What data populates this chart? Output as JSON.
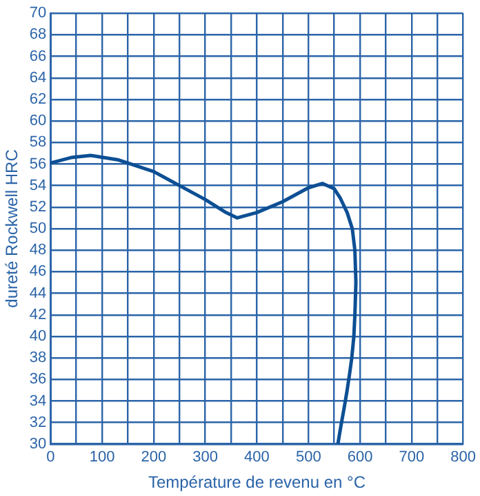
{
  "chart_data": {
    "type": "line",
    "xlabel": "Température de revenu en °C",
    "ylabel": "dureté Rockwell HRC",
    "series": [
      {
        "color": "#0d4f94",
        "x": [
          0,
          40,
          78,
          130,
          200,
          250,
          300,
          340,
          362,
          400,
          450,
          500,
          527,
          550,
          561,
          575,
          585,
          590,
          592,
          590,
          588,
          584,
          580,
          575,
          569,
          563,
          557
        ],
        "values": [
          56.1,
          56.6,
          56.8,
          56.4,
          55.3,
          54.0,
          52.7,
          51.5,
          51.0,
          51.5,
          52.5,
          53.8,
          54.2,
          53.7,
          52.9,
          51.5,
          50,
          48,
          45,
          42,
          40,
          38,
          36.6,
          35,
          33.3,
          31.7,
          30
        ]
      }
    ],
    "xlim": [
      0,
      800
    ],
    "ylim": [
      30,
      70
    ],
    "xticks": [
      0,
      {
        "value": 50,
        "label": null
      },
      100,
      {
        "value": 150,
        "label": null
      },
      200,
      {
        "value": 250,
        "label": null
      },
      300,
      {
        "value": 350,
        "label": null
      },
      400,
      {
        "value": 450,
        "label": null
      },
      500,
      {
        "value": 550,
        "label": null
      },
      600,
      {
        "value": 650,
        "label": null
      },
      700,
      {
        "value": 750,
        "label": null
      },
      800
    ],
    "yticks": [
      30,
      32,
      34,
      36,
      38,
      40,
      42,
      44,
      46,
      48,
      50,
      52,
      54,
      56,
      58,
      60,
      62,
      64,
      66,
      68,
      70
    ],
    "grid": true,
    "marker": "none",
    "line_style": "solid",
    "legend": false
  }
}
